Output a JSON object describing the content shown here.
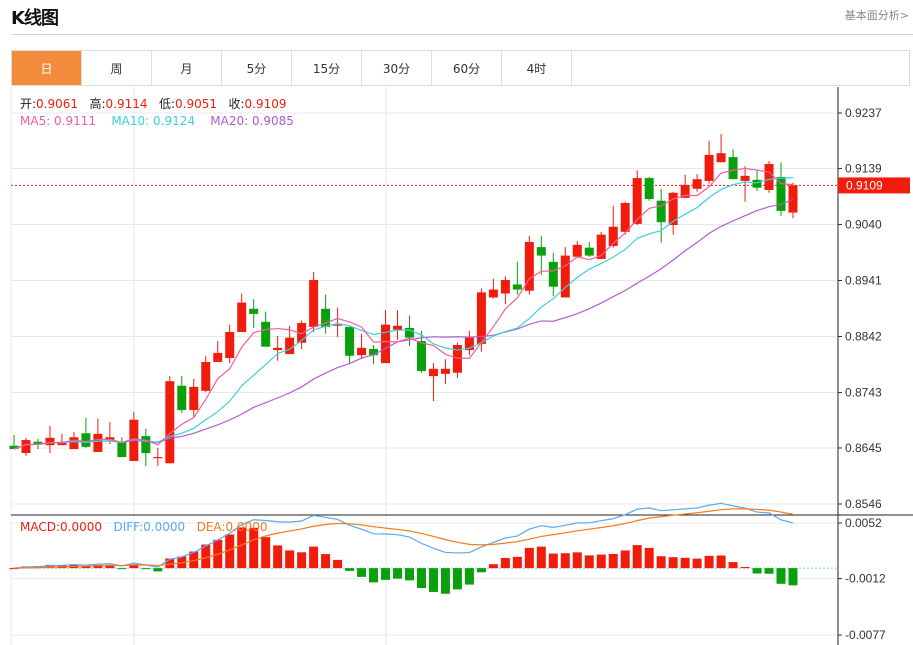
{
  "header": {
    "title": "K线图",
    "link": "基本面分析>"
  },
  "tabs": [
    {
      "label": "日",
      "active": true
    },
    {
      "label": "周"
    },
    {
      "label": "月"
    },
    {
      "label": "5分"
    },
    {
      "label": "15分"
    },
    {
      "label": "30分"
    },
    {
      "label": "60分"
    },
    {
      "label": "4时"
    }
  ],
  "ohlc_info": {
    "open_label": "开:",
    "open": "0.9061",
    "high_label": "高:",
    "high": "0.9114",
    "low_label": "低:",
    "low": "0.9051",
    "close_label": "收:",
    "close": "0.9109"
  },
  "ma_info": {
    "ma5": "MA5: 0.9111",
    "ma10": "MA10: 0.9124",
    "ma20": "MA20: 0.9085"
  },
  "macd_info": {
    "macd": "MACD:0.0000",
    "diff": "DIFF:0.0000",
    "dea": "DEA:0.0000"
  },
  "colors": {
    "up": "#f21c0c",
    "down": "#09a00b",
    "ma5": "#f0609a",
    "ma10": "#3ccfe0",
    "ma20": "#b45cd0",
    "diff": "#5aa9f0",
    "dea": "#f57a1e",
    "accent": "#f28c3c"
  },
  "chart_data": {
    "type": "candlestick",
    "price_ticks": [
      "0.9237",
      "0.9139",
      "0.9040",
      "0.8941",
      "0.8842",
      "0.8743",
      "0.8645",
      "0.8546"
    ],
    "price_range": [
      0.8546,
      0.9237
    ],
    "last_price": "0.9109",
    "macd_ticks": [
      "0.0052",
      "-0.0012",
      "-0.0077"
    ],
    "macd_range": [
      -0.0077,
      0.0052
    ],
    "ohlc": [
      [
        0.8649,
        0.8668,
        0.8643,
        0.8643
      ],
      [
        0.8636,
        0.8663,
        0.8631,
        0.8659
      ],
      [
        0.8656,
        0.8661,
        0.8643,
        0.8652
      ],
      [
        0.865,
        0.8684,
        0.8636,
        0.8663
      ],
      [
        0.865,
        0.867,
        0.865,
        0.8656
      ],
      [
        0.8643,
        0.8673,
        0.8643,
        0.8664
      ],
      [
        0.8671,
        0.8698,
        0.8645,
        0.8647
      ],
      [
        0.8638,
        0.8697,
        0.8638,
        0.867
      ],
      [
        0.8659,
        0.8691,
        0.8652,
        0.8664
      ],
      [
        0.8656,
        0.8664,
        0.8629,
        0.8629
      ],
      [
        0.8622,
        0.8709,
        0.8622,
        0.8695
      ],
      [
        0.8666,
        0.8679,
        0.8613,
        0.8636
      ],
      [
        0.8627,
        0.8645,
        0.8613,
        0.8629
      ],
      [
        0.8618,
        0.8772,
        0.8618,
        0.8763
      ],
      [
        0.8755,
        0.8772,
        0.8707,
        0.8712
      ],
      [
        0.8712,
        0.8767,
        0.87,
        0.8753
      ],
      [
        0.8746,
        0.8808,
        0.8744,
        0.8797
      ],
      [
        0.8797,
        0.8834,
        0.8797,
        0.8813
      ],
      [
        0.8804,
        0.8863,
        0.8795,
        0.885
      ],
      [
        0.885,
        0.8918,
        0.885,
        0.8902
      ],
      [
        0.8891,
        0.8908,
        0.8857,
        0.8882
      ],
      [
        0.8868,
        0.8886,
        0.8824,
        0.8824
      ],
      [
        0.8818,
        0.8843,
        0.8799,
        0.8822
      ],
      [
        0.8811,
        0.8861,
        0.8811,
        0.884
      ],
      [
        0.8831,
        0.887,
        0.882,
        0.8866
      ],
      [
        0.8859,
        0.8956,
        0.885,
        0.8942
      ],
      [
        0.8891,
        0.8916,
        0.8847,
        0.8859
      ],
      [
        0.8861,
        0.8893,
        0.8841,
        0.8863
      ],
      [
        0.8859,
        0.8859,
        0.8795,
        0.8808
      ],
      [
        0.8809,
        0.8847,
        0.8802,
        0.8822
      ],
      [
        0.882,
        0.8827,
        0.8793,
        0.8809
      ],
      [
        0.8795,
        0.8889,
        0.8795,
        0.8863
      ],
      [
        0.8854,
        0.8888,
        0.8836,
        0.8861
      ],
      [
        0.8857,
        0.8879,
        0.8825,
        0.884
      ],
      [
        0.8834,
        0.8852,
        0.8778,
        0.8781
      ],
      [
        0.8772,
        0.8795,
        0.8728,
        0.8785
      ],
      [
        0.8776,
        0.8802,
        0.8758,
        0.8785
      ],
      [
        0.8778,
        0.8831,
        0.8769,
        0.8827
      ],
      [
        0.8818,
        0.8852,
        0.8809,
        0.884
      ],
      [
        0.8829,
        0.8927,
        0.8815,
        0.892
      ],
      [
        0.8911,
        0.8944,
        0.8909,
        0.8925
      ],
      [
        0.8918,
        0.8948,
        0.8899,
        0.8942
      ],
      [
        0.8934,
        0.8974,
        0.8916,
        0.8925
      ],
      [
        0.8923,
        0.902,
        0.8916,
        0.9009
      ],
      [
        0.9,
        0.902,
        0.8951,
        0.8985
      ],
      [
        0.8974,
        0.899,
        0.8913,
        0.893
      ],
      [
        0.8911,
        0.9,
        0.8911,
        0.8985
      ],
      [
        0.8983,
        0.9011,
        0.8983,
        0.9004
      ],
      [
        0.8999,
        0.9009,
        0.8983,
        0.8985
      ],
      [
        0.8979,
        0.9027,
        0.8979,
        0.9022
      ],
      [
        0.9002,
        0.9073,
        0.8999,
        0.9036
      ],
      [
        0.9027,
        0.908,
        0.9022,
        0.9078
      ],
      [
        0.9041,
        0.9136,
        0.9039,
        0.9122
      ],
      [
        0.9122,
        0.9124,
        0.9082,
        0.9085
      ],
      [
        0.9082,
        0.9103,
        0.9008,
        0.9044
      ],
      [
        0.9039,
        0.9098,
        0.9022,
        0.9096
      ],
      [
        0.9087,
        0.9128,
        0.9087,
        0.911
      ],
      [
        0.9103,
        0.9129,
        0.9098,
        0.912
      ],
      [
        0.9117,
        0.9188,
        0.9112,
        0.9163
      ],
      [
        0.915,
        0.92,
        0.915,
        0.9166
      ],
      [
        0.9159,
        0.9173,
        0.912,
        0.912
      ],
      [
        0.9117,
        0.9143,
        0.908,
        0.9126
      ],
      [
        0.9119,
        0.9135,
        0.9099,
        0.9105
      ],
      [
        0.9101,
        0.9152,
        0.9096,
        0.9147
      ],
      [
        0.9124,
        0.915,
        0.9055,
        0.9064
      ],
      [
        0.9061,
        0.9114,
        0.9051,
        0.9109
      ]
    ]
  }
}
